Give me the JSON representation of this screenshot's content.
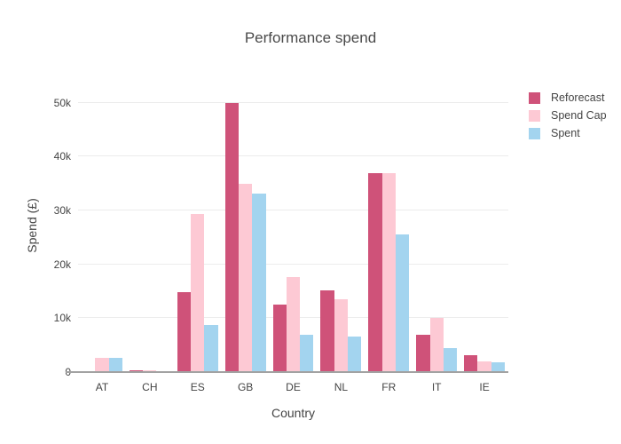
{
  "title": "Performance spend",
  "colors": {
    "reforecast": "#cf5279",
    "spend_cap": "#fdc9d4",
    "spent": "#a3d4ef",
    "gridline": "#ececec",
    "axis_line": "#a2a2a2",
    "text": "#444444"
  },
  "chart_data": {
    "type": "bar",
    "title": "Performance spend",
    "xlabel": "Country",
    "ylabel": "Spend (£)",
    "categories": [
      "AT",
      "CH",
      "ES",
      "GB",
      "DE",
      "NL",
      "FR",
      "IT",
      "IE"
    ],
    "series": [
      {
        "name": "Reforecast",
        "color": "#cf5279",
        "values": [
          0,
          400,
          14800,
          50000,
          12500,
          15200,
          37000,
          7000,
          3100
        ]
      },
      {
        "name": "Spend Cap",
        "color": "#fdc9d4",
        "values": [
          2600,
          300,
          29400,
          35000,
          17700,
          13500,
          37000,
          10000,
          2000
        ]
      },
      {
        "name": "Spent",
        "color": "#a3d4ef",
        "values": [
          2600,
          150,
          8800,
          33200,
          7000,
          6600,
          25600,
          4400,
          1800
        ]
      }
    ],
    "yticks": [
      {
        "label": "0",
        "value": 0
      },
      {
        "label": "10k",
        "value": 10000
      },
      {
        "label": "20k",
        "value": 20000
      },
      {
        "label": "30k",
        "value": 30000
      },
      {
        "label": "40k",
        "value": 40000
      },
      {
        "label": "50k",
        "value": 50000
      }
    ],
    "ylim": [
      0,
      54400
    ],
    "grid": true,
    "legend_position": "right"
  }
}
